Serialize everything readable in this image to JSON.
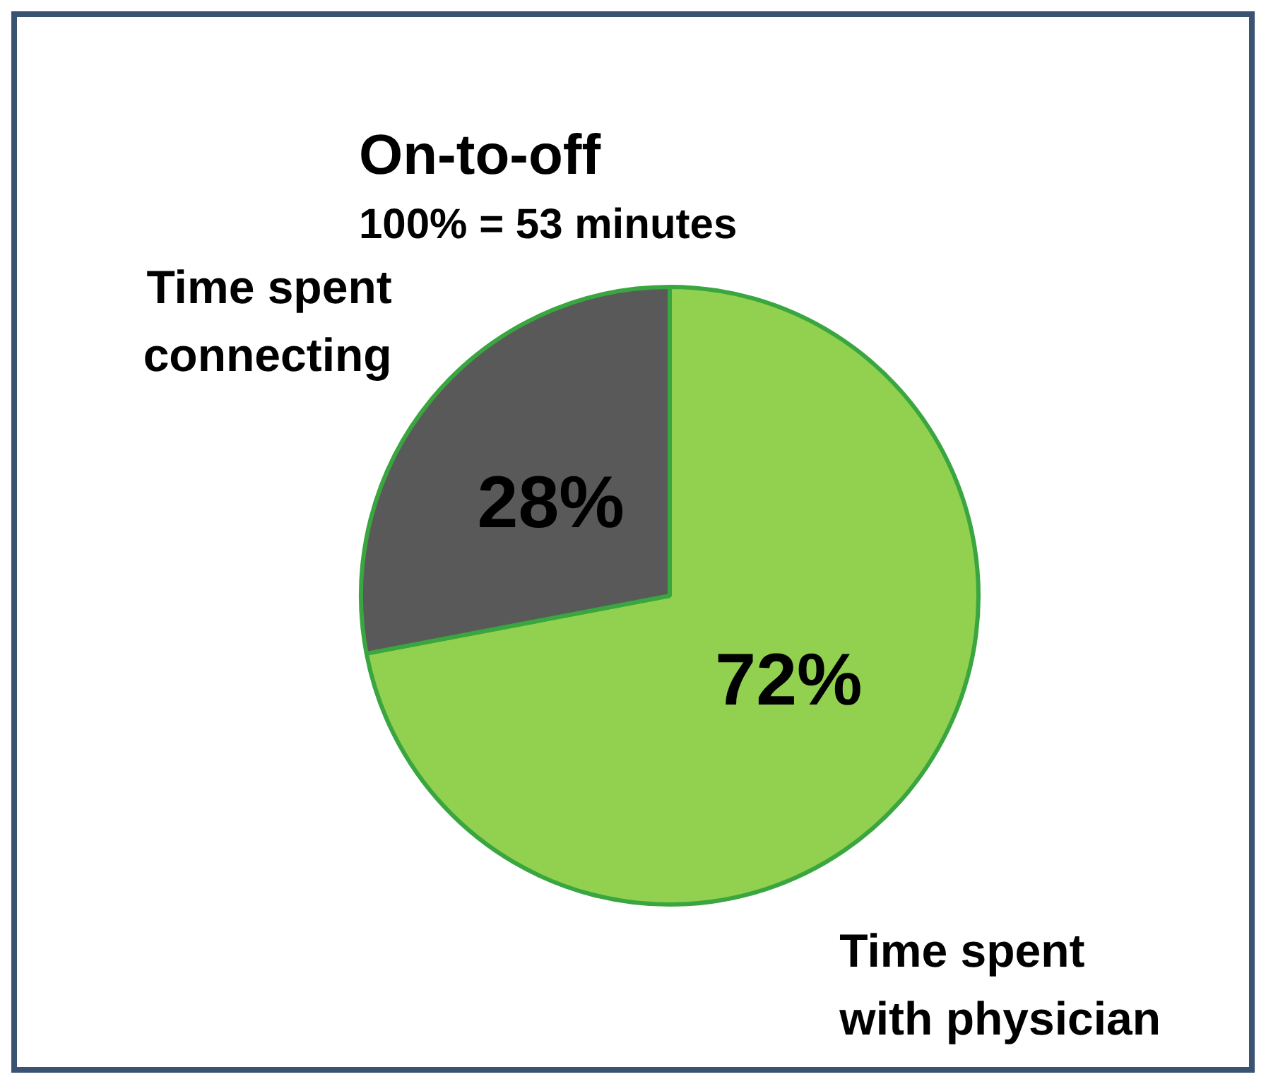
{
  "chart_data": {
    "type": "pie",
    "title": "On-to-off",
    "subtitle": "100% = 53 minutes",
    "categories": [
      "Time spent with physician",
      "Time spent connecting"
    ],
    "values": [
      72,
      28
    ],
    "colors": [
      "#92d050",
      "#595959"
    ],
    "value_labels": [
      "72%",
      "28%"
    ],
    "legend": false
  }
}
